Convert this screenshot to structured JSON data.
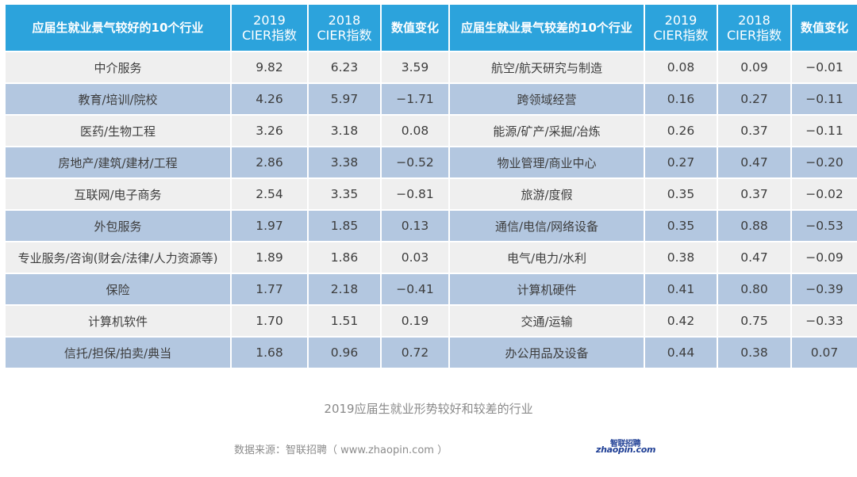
{
  "table": {
    "headers": {
      "good_title": "应届生就业景气较好的10个行业",
      "good_2019_year": "2019",
      "good_2019_label": "CIER指数",
      "good_2018_year": "2018",
      "good_2018_label": "CIER指数",
      "good_change": "数值变化",
      "bad_title": "应届生就业景气较差的10个行业",
      "bad_2019_year": "2019",
      "bad_2019_label": "CIER指数",
      "bad_2018_year": "2018",
      "bad_2018_label": "CIER指数",
      "bad_change": "数值变化"
    },
    "rows": [
      {
        "good": "中介服务",
        "g2019": "9.82",
        "g2018": "6.23",
        "gchg": "3.59",
        "bad": "航空/航天研究与制造",
        "b2019": "0.08",
        "b2018": "0.09",
        "bchg": "−0.01"
      },
      {
        "good": "教育/培训/院校",
        "g2019": "4.26",
        "g2018": "5.97",
        "gchg": "−1.71",
        "bad": "跨领域经营",
        "b2019": "0.16",
        "b2018": "0.27",
        "bchg": "−0.11"
      },
      {
        "good": "医药/生物工程",
        "g2019": "3.26",
        "g2018": "3.18",
        "gchg": "0.08",
        "bad": "能源/矿产/采掘/冶炼",
        "b2019": "0.26",
        "b2018": "0.37",
        "bchg": "−0.11"
      },
      {
        "good": "房地产/建筑/建材/工程",
        "g2019": "2.86",
        "g2018": "3.38",
        "gchg": "−0.52",
        "bad": "物业管理/商业中心",
        "b2019": "0.27",
        "b2018": "0.47",
        "bchg": "−0.20"
      },
      {
        "good": "互联网/电子商务",
        "g2019": "2.54",
        "g2018": "3.35",
        "gchg": "−0.81",
        "bad": "旅游/度假",
        "b2019": "0.35",
        "b2018": "0.37",
        "bchg": "−0.02"
      },
      {
        "good": "外包服务",
        "g2019": "1.97",
        "g2018": "1.85",
        "gchg": "0.13",
        "bad": "通信/电信/网络设备",
        "b2019": "0.35",
        "b2018": "0.88",
        "bchg": "−0.53"
      },
      {
        "good": "专业服务/咨询(财会/法律/人力资源等)",
        "g2019": "1.89",
        "g2018": "1.86",
        "gchg": "0.03",
        "bad": "电气/电力/水利",
        "b2019": "0.38",
        "b2018": "0.47",
        "bchg": "−0.09"
      },
      {
        "good": "保险",
        "g2019": "1.77",
        "g2018": "2.18",
        "gchg": "−0.41",
        "bad": "计算机硬件",
        "b2019": "0.41",
        "b2018": "0.80",
        "bchg": "−0.39"
      },
      {
        "good": "计算机软件",
        "g2019": "1.70",
        "g2018": "1.51",
        "gchg": "0.19",
        "bad": "交通/运输",
        "b2019": "0.42",
        "b2018": "0.75",
        "bchg": "−0.33"
      },
      {
        "good": "信托/担保/拍卖/典当",
        "g2019": "1.68",
        "g2018": "0.96",
        "gchg": "0.72",
        "bad": "办公用品及设备",
        "b2019": "0.44",
        "b2018": "0.38",
        "bchg": "0.07"
      }
    ]
  },
  "caption": "2019应届生就业形势较好和较差的行业",
  "source": "数据来源：智联招聘（ www.zhaopin.com ）",
  "logo": {
    "cn": "智联招聘",
    "en": "zhaopin.com"
  },
  "colors": {
    "header": "#2ca3dc",
    "row_odd": "#efefef",
    "row_even": "#b3c7e0",
    "logo_blue": "#1f3f95",
    "logo_yellow": "#f2b51b"
  }
}
